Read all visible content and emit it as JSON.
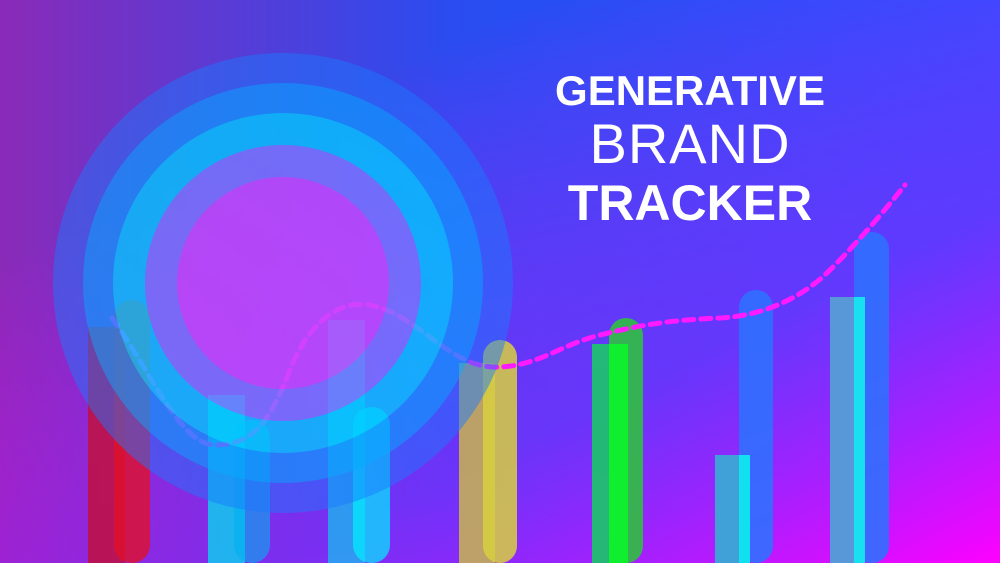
{
  "title": {
    "line1": "GENERATIVE",
    "line2": "BRAND",
    "line3": "TRACKER"
  },
  "colors": {
    "background_top_left": "#8a2ab8",
    "background_top_right": "#0a5cff",
    "background_bottom_right": "#ff00ff",
    "dashed_line": "#ff1aff",
    "circle_center": "#c64cff",
    "ring_cyan": "#00d8ff"
  },
  "decorative_bars": [
    {
      "color": "#e0102a"
    },
    {
      "color": "#00ffff"
    },
    {
      "color": "#00ffff"
    },
    {
      "color": "#f0e010"
    },
    {
      "color": "#10ee30"
    },
    {
      "color": "#10e8f0"
    },
    {
      "color": "#10e8f0"
    }
  ]
}
